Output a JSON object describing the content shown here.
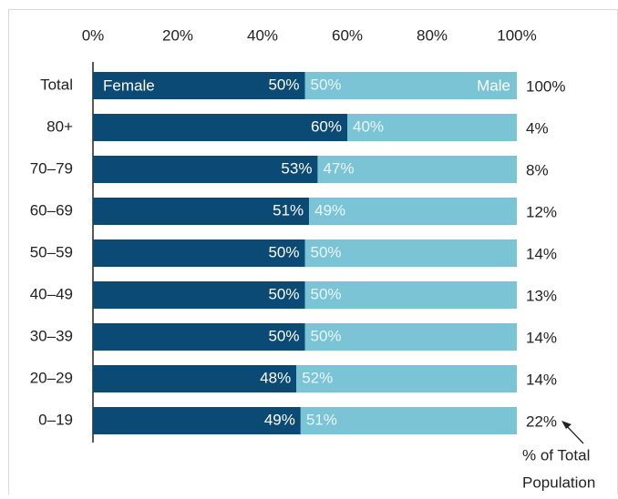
{
  "chart_data": {
    "type": "stacked_bar_horizontal",
    "categories": [
      "Total",
      "80+",
      "70–79",
      "60–69",
      "50–59",
      "40–49",
      "30–39",
      "20–29",
      "0–19"
    ],
    "series": [
      {
        "name": "Female",
        "color": "#0b4a75",
        "values": [
          50,
          60,
          53,
          51,
          50,
          50,
          50,
          48,
          49
        ],
        "value_labels": [
          "50%",
          "60%",
          "53%",
          "51%",
          "50%",
          "50%",
          "50%",
          "48%",
          "49%"
        ]
      },
      {
        "name": "Male",
        "color": "#7bc4d6",
        "values": [
          50,
          40,
          47,
          49,
          50,
          50,
          50,
          52,
          51
        ],
        "value_labels": [
          "50%",
          "40%",
          "47%",
          "49%",
          "50%",
          "50%",
          "50%",
          "52%",
          "51%"
        ]
      }
    ],
    "population_share": [
      "100%",
      "4%",
      "8%",
      "12%",
      "14%",
      "13%",
      "14%",
      "14%",
      "22%"
    ],
    "annotation": [
      "% of Total",
      "Population"
    ],
    "xlim": [
      0,
      100
    ],
    "xticks": [
      {
        "value": 0,
        "label": "0%"
      },
      {
        "value": 20,
        "label": "20%"
      },
      {
        "value": 40,
        "label": "40%"
      },
      {
        "value": 60,
        "label": "60%"
      },
      {
        "value": 80,
        "label": "80%"
      },
      {
        "value": 100,
        "label": "100%"
      }
    ]
  }
}
